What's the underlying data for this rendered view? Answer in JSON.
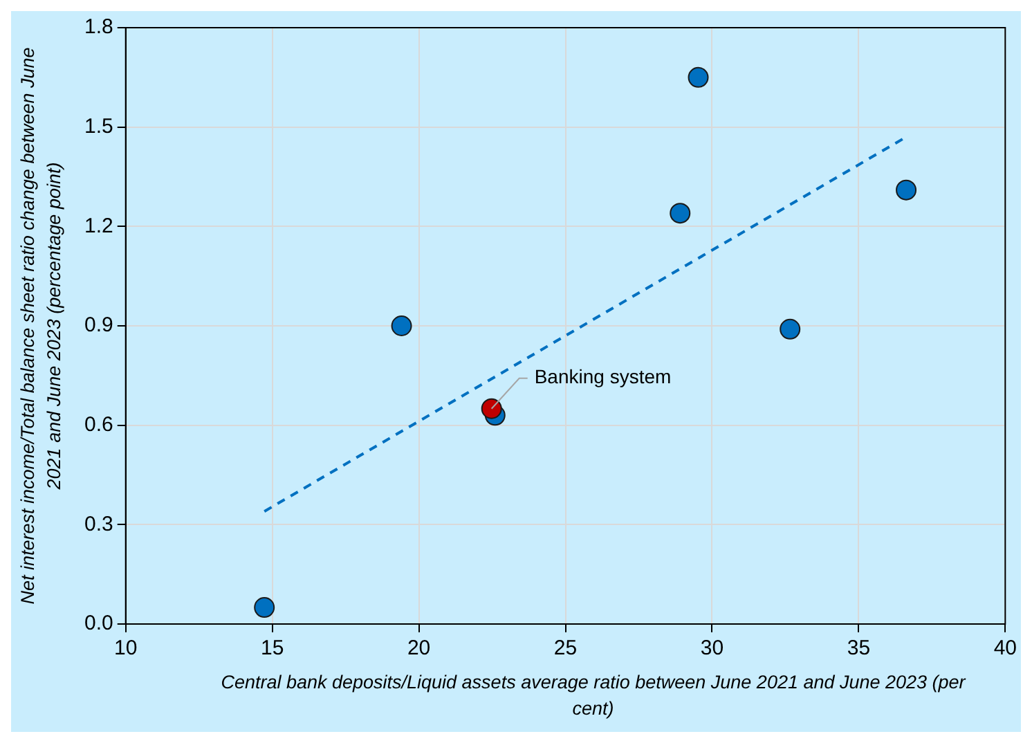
{
  "chart_data": {
    "type": "scatter",
    "xlabel": "Central bank deposits/Liquid assets average ratio between June 2021 and June 2023 (per cent)",
    "ylabel": "Net interest income/Total balance sheet ratio change between June 2021 and June 2023 (percentage point)",
    "xlim": [
      10,
      40
    ],
    "xticks": [
      10,
      15,
      20,
      25,
      30,
      35,
      40
    ],
    "ylim": [
      0,
      1.8
    ],
    "yticks": [
      {
        "value": 0,
        "label": "0.0"
      },
      0.3,
      0.6,
      0.9,
      1.2,
      1.5,
      1.8
    ],
    "grid": true,
    "legend": false,
    "marker": "circle",
    "series": [
      {
        "type": "line",
        "color": "#0070c0",
        "line_style": "dashed",
        "marker": "none",
        "x": [
          14.73,
          36.62
        ],
        "values": [
          0.34,
          1.47
        ]
      },
      {
        "color": "#0070c0",
        "x": [
          14.73,
          19.41,
          22.6,
          28.91,
          29.53,
          32.66,
          36.62
        ],
        "values": [
          0.05,
          0.9,
          0.63,
          1.24,
          1.65,
          0.89,
          1.31
        ]
      },
      {
        "color": "#c00000",
        "x": [
          22.48
        ],
        "values": [
          0.65
        ]
      }
    ],
    "annotations": [
      {
        "text": "Banking system",
        "x": 22.48,
        "y": 0.65
      }
    ]
  }
}
